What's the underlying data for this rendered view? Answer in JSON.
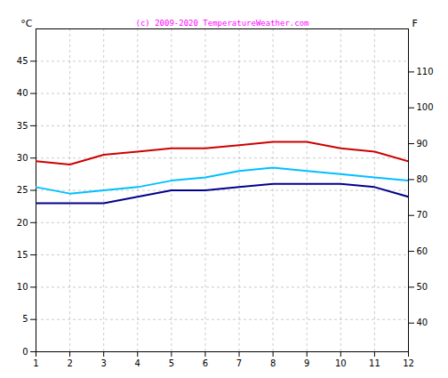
{
  "chart_data": {
    "type": "line",
    "x": [
      1,
      2,
      3,
      4,
      5,
      6,
      7,
      8,
      9,
      10,
      11,
      12
    ],
    "series": [
      {
        "color": "#CC0000",
        "values": [
          29.5,
          29.0,
          30.5,
          31.0,
          31.5,
          31.5,
          32.0,
          32.5,
          32.5,
          31.5,
          31.0,
          29.5
        ]
      },
      {
        "color": "#00BFFF",
        "values": [
          25.5,
          24.5,
          25.0,
          25.5,
          26.5,
          27.0,
          28.0,
          28.5,
          28.0,
          27.5,
          27.0,
          26.5
        ]
      },
      {
        "color": "#00008B",
        "values": [
          23.0,
          23.0,
          23.0,
          24.0,
          25.0,
          25.0,
          25.5,
          26.0,
          26.0,
          26.0,
          25.5,
          24.0
        ]
      }
    ],
    "xlim": [
      1,
      12
    ],
    "xticks": [
      1,
      2,
      3,
      4,
      5,
      6,
      7,
      8,
      9,
      10,
      11,
      12
    ],
    "ylim": [
      0,
      50
    ],
    "yticks": [
      0,
      5,
      10,
      15,
      20,
      25,
      30,
      35,
      40,
      45
    ],
    "y2lim": [
      32,
      122
    ],
    "y2ticks": [
      40,
      50,
      60,
      70,
      80,
      90,
      100,
      110
    ],
    "ylabel": "°C",
    "y2label": "F",
    "annotations": [
      {
        "text": "(c) 2009-2020 TemperatureWeather.com",
        "color": "#FF00FF"
      }
    ],
    "grid": true
  }
}
